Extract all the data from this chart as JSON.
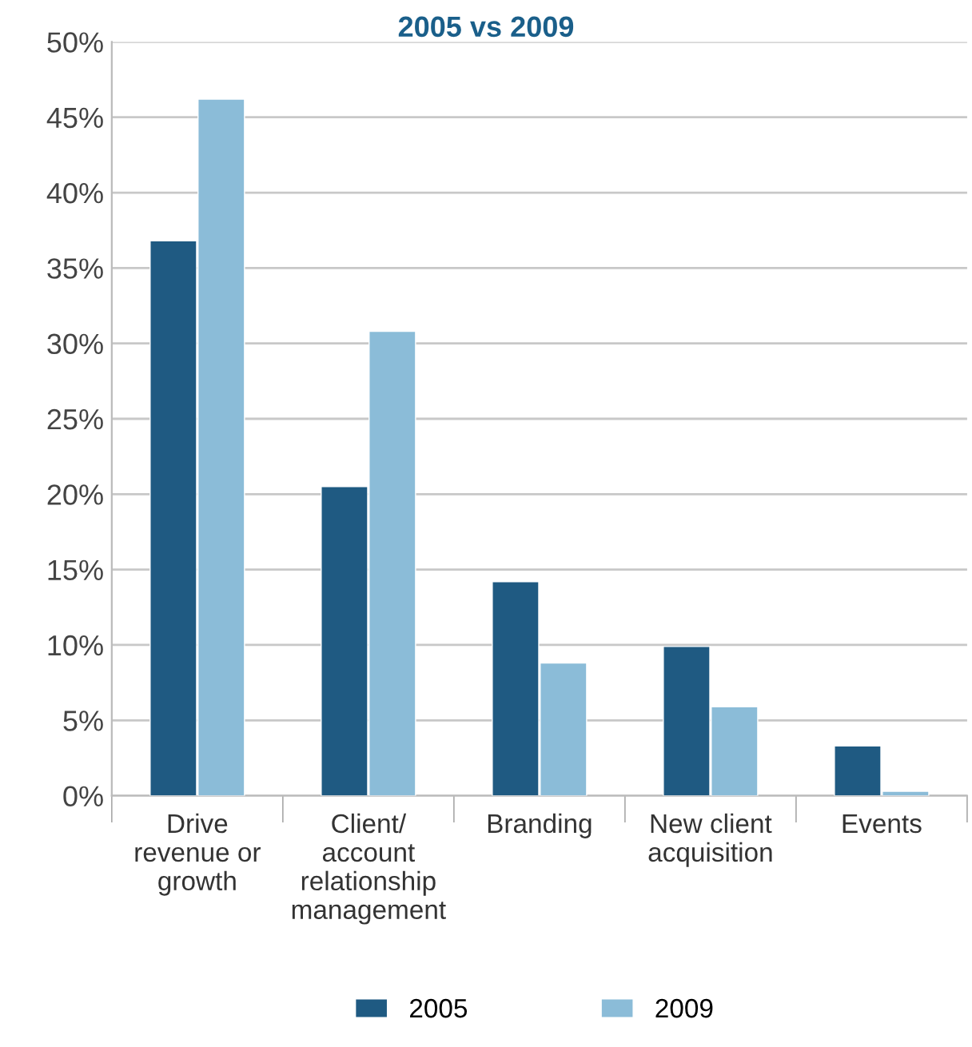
{
  "chart_data": {
    "type": "bar",
    "title": "2005 vs 2009",
    "categories": [
      "Drive\nrevenue or\ngrowth",
      "Client/\naccount\nrelationship\nmanagement",
      "Branding",
      "New client\nacquisition",
      "Events"
    ],
    "series": [
      {
        "name": "2005",
        "color": "#1f5a82",
        "values": [
          36.8,
          20.5,
          14.2,
          9.9,
          3.3
        ]
      },
      {
        "name": "2009",
        "color": "#8bbcd8",
        "values": [
          46.2,
          30.8,
          8.8,
          5.9,
          0.3
        ]
      }
    ],
    "ylim": [
      0,
      50
    ],
    "yticks": [
      {
        "value": 0,
        "label": "0%"
      },
      {
        "value": 5,
        "label": "5%"
      },
      {
        "value": 10,
        "label": "10%"
      },
      {
        "value": 15,
        "label": "15%"
      },
      {
        "value": 20,
        "label": "20%"
      },
      {
        "value": 25,
        "label": "25%"
      },
      {
        "value": 30,
        "label": "30%"
      },
      {
        "value": 35,
        "label": "35%"
      },
      {
        "value": 40,
        "label": "40%"
      },
      {
        "value": 45,
        "label": "45%"
      },
      {
        "value": 50,
        "label": "50%"
      }
    ],
    "grid": "y",
    "legend": "bottom"
  }
}
